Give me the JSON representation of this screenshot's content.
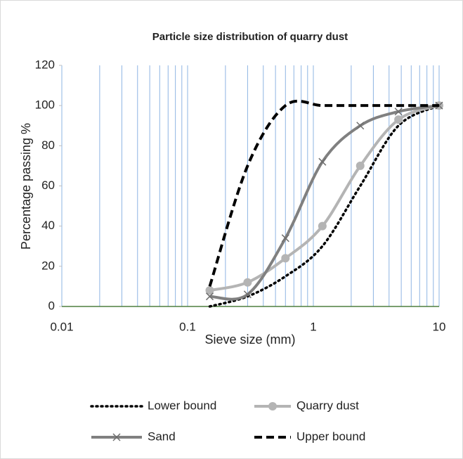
{
  "chart_data": {
    "type": "line",
    "title": "Particle size distribution of quarry dust",
    "x_label": "Sieve size (mm)",
    "y_label": "Percentage passing  %",
    "x": [
      0.15,
      0.3,
      0.6,
      1.18,
      2.36,
      4.75,
      10
    ],
    "series": [
      {
        "name": "Lower bound",
        "color": "#000000",
        "style": "dotted",
        "marker": "none",
        "values": [
          0,
          5,
          15,
          30,
          60,
          90,
          100
        ]
      },
      {
        "name": "Quarry dust",
        "color": "#b4b4b4",
        "style": "solid",
        "marker": "circle",
        "values": [
          8,
          12,
          24,
          40,
          70,
          93,
          100
        ]
      },
      {
        "name": "Sand",
        "color": "#808080",
        "style": "solid",
        "marker": "x",
        "values": [
          5,
          6,
          34,
          72,
          90,
          97,
          100
        ]
      },
      {
        "name": "Upper bound",
        "color": "#000000",
        "style": "dashed",
        "marker": "none",
        "values": [
          10,
          70,
          100,
          100,
          100,
          100,
          100
        ]
      }
    ],
    "x_log": true,
    "xlim": [
      0.01,
      10
    ],
    "xticks": [
      0.01,
      0.1,
      1,
      10
    ],
    "ylim": [
      0,
      120
    ],
    "yticks": [
      0,
      20,
      40,
      60,
      80,
      100,
      120
    ],
    "x_grid": true,
    "x_minor_grid": true,
    "grid_color": "#8eb4e3",
    "legend": "bottom"
  }
}
